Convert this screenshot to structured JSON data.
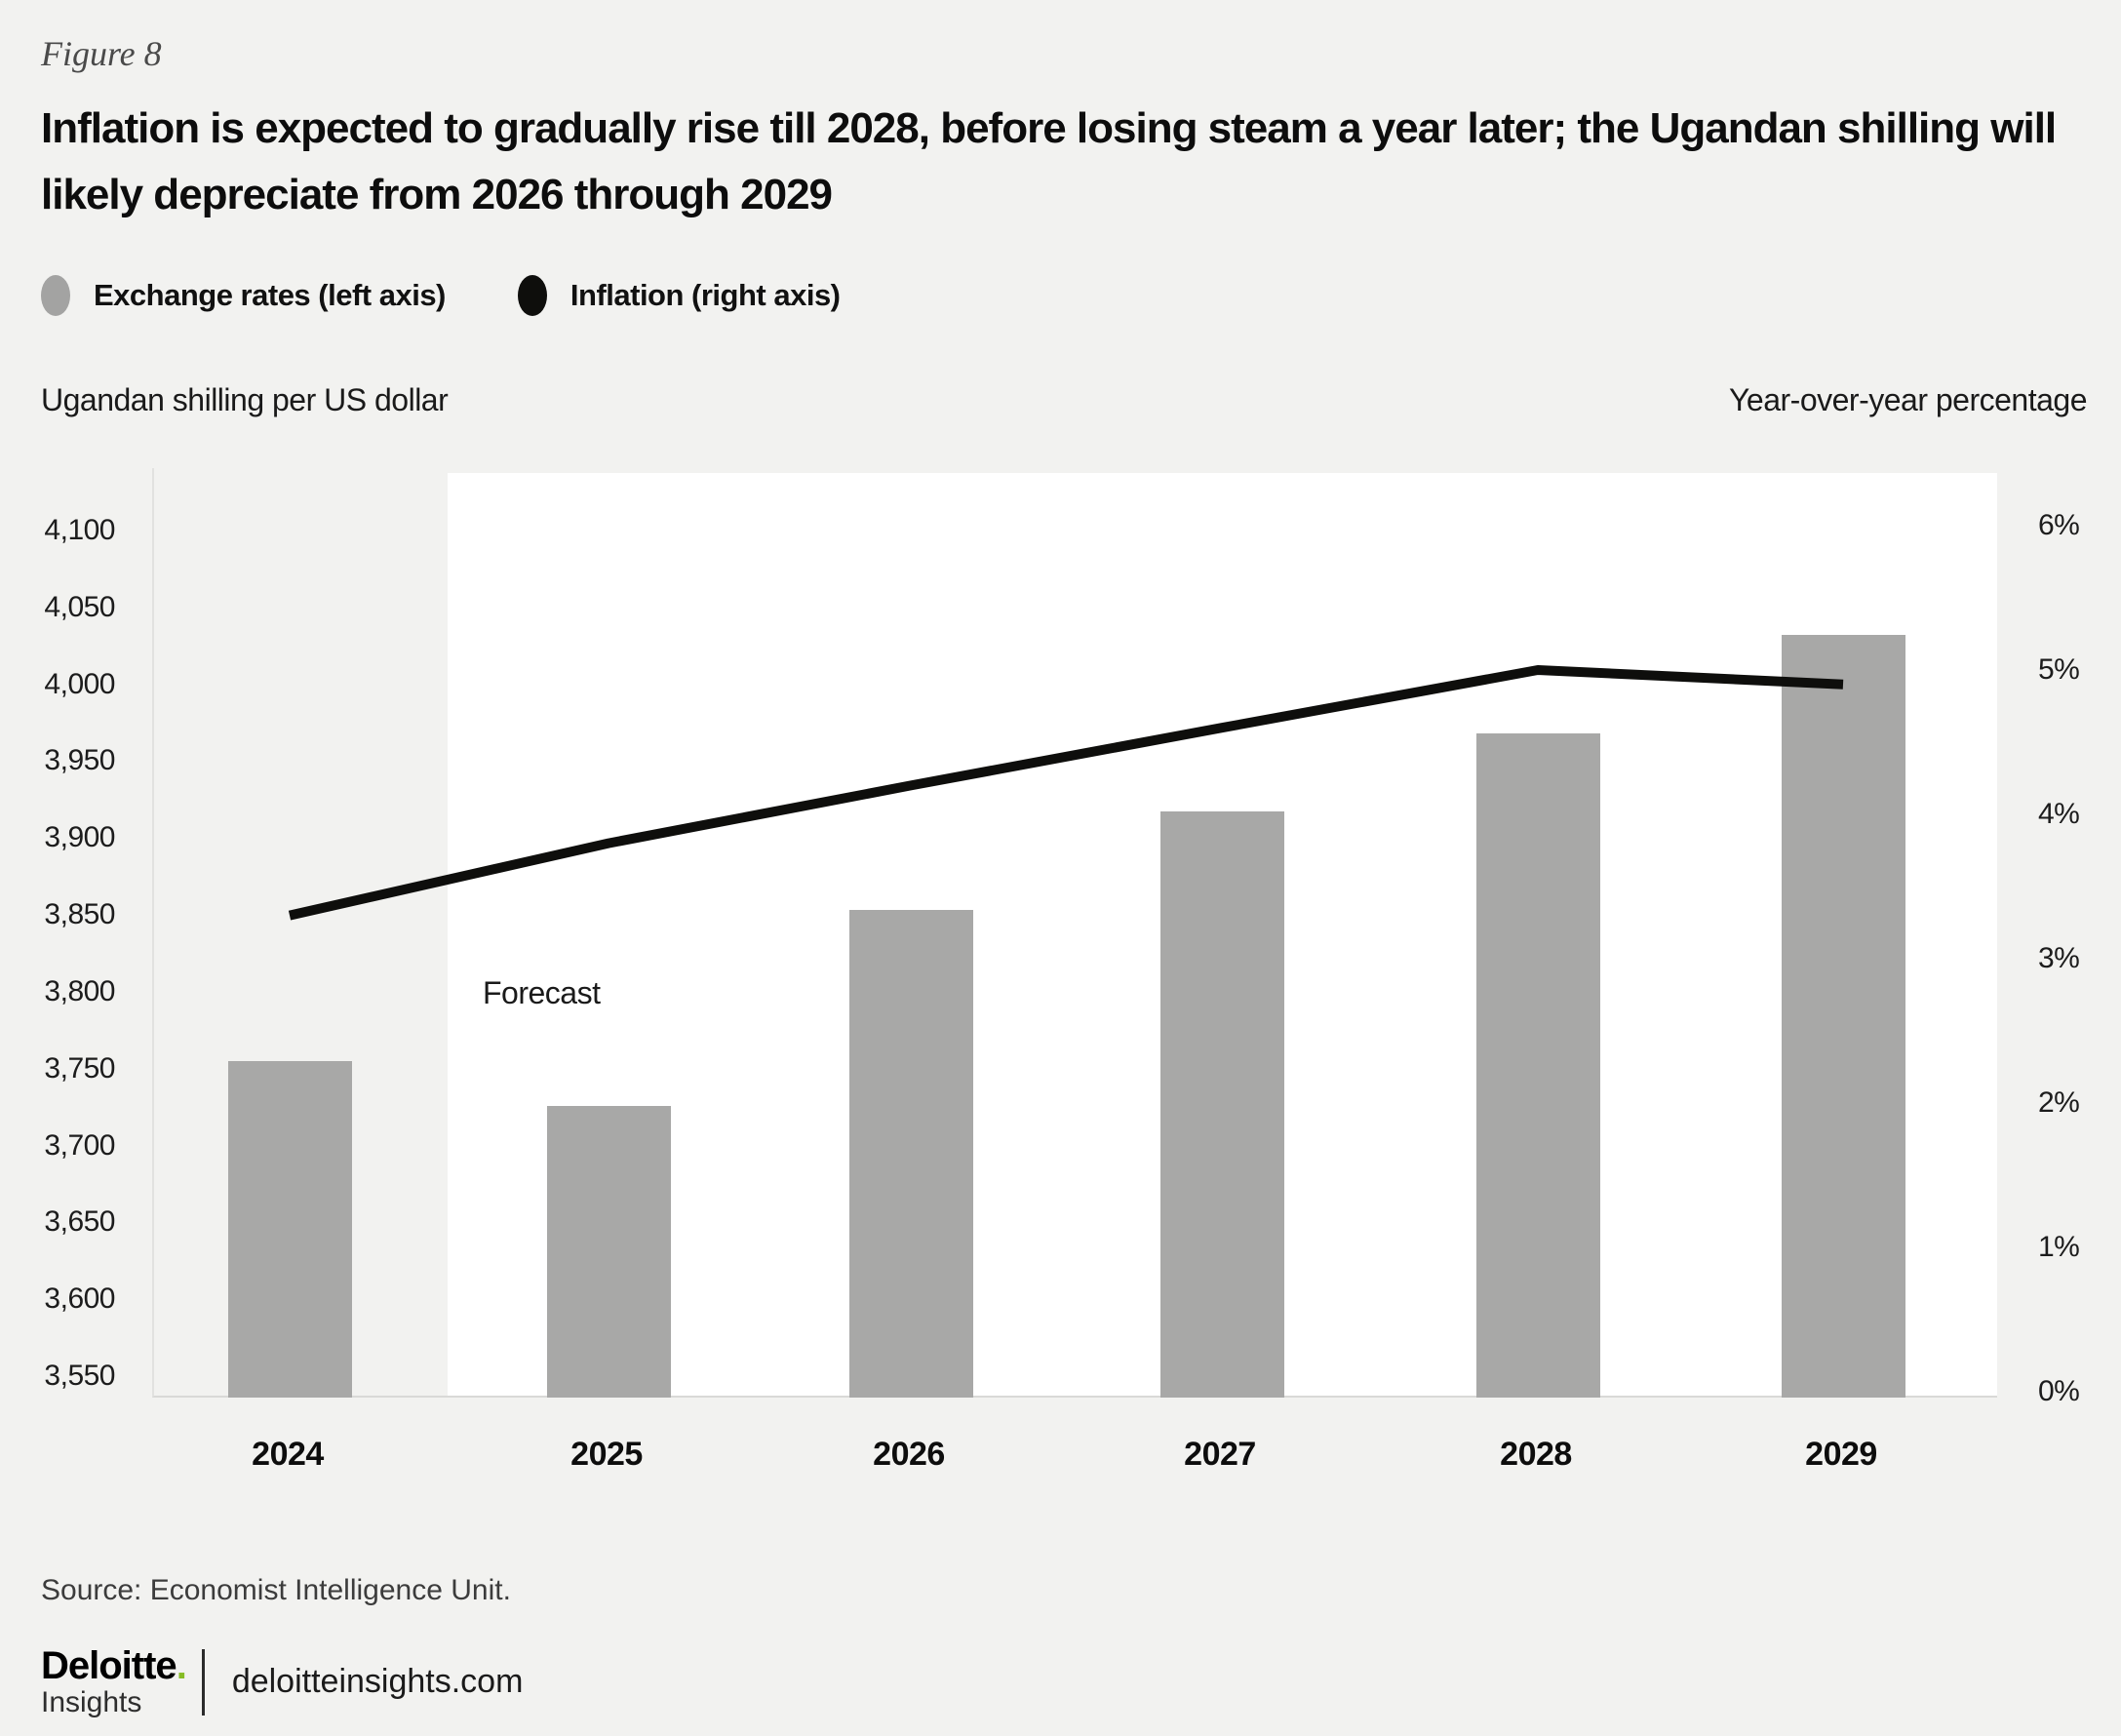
{
  "figure_label": "Figure 8",
  "title": "Inflation is expected to gradually rise till 2028, before losing steam a year later; the Ugandan shilling will likely depreciate from 2026 through 2029",
  "legend": [
    {
      "label": "Exchange rates (left axis)",
      "color": "#a3a3a2"
    },
    {
      "label": "Inflation (right axis)",
      "color": "#0e0e0c"
    }
  ],
  "left_axis_title": "Ugandan shilling per US dollar",
  "right_axis_title": "Year-over-year percentage",
  "forecast_label": "Forecast",
  "chart_data": {
    "type": "bar",
    "title": "Inflation is expected to gradually rise till 2028, before losing steam a year later; the Ugandan shilling will likely depreciate from 2026 through 2029",
    "categories": [
      "2024",
      "2025",
      "2026",
      "2027",
      "2028",
      "2029"
    ],
    "series": [
      {
        "name": "Exchange rates (left axis)",
        "type": "bar",
        "axis": "left",
        "values": [
          3755,
          3726,
          3853,
          3917,
          3968,
          4032
        ]
      },
      {
        "name": "Inflation (right axis)",
        "type": "line",
        "axis": "right",
        "values": [
          3.3,
          3.8,
          4.2,
          4.6,
          5.0,
          4.9
        ]
      }
    ],
    "left_axis": {
      "label": "Ugandan shilling per US dollar",
      "min": 3550,
      "max": 4100,
      "tick_step": 50,
      "tick_labels": [
        "4,100",
        "4,050",
        "4,000",
        "3,950",
        "3,900",
        "3,850",
        "3,800",
        "3,750",
        "3,700",
        "3,650",
        "3,600",
        "3,550"
      ]
    },
    "right_axis": {
      "label": "Year-over-year percentage",
      "min": 0,
      "max": 6,
      "tick_step": 1,
      "tick_labels": [
        "6%",
        "5%",
        "4%",
        "3%",
        "2%",
        "1%",
        "0%"
      ]
    },
    "forecast_starts_after": "2024",
    "grid": false,
    "legend_position": "top-left"
  },
  "source": "Source: Economist Intelligence Unit.",
  "footer": {
    "brand": "Deloitte",
    "brand_dot": ".",
    "brand_sub": "Insights",
    "site": "deloitteinsights.com"
  },
  "colors": {
    "page_bg": "#f2f2f0",
    "forecast_bg": "#ffffff",
    "bar": "#a8a8a7",
    "line": "#0e0e0c",
    "legend_bar_marker": "#a3a3a2",
    "legend_line_marker": "#0e0e0c",
    "brand_green": "#86bc25"
  }
}
